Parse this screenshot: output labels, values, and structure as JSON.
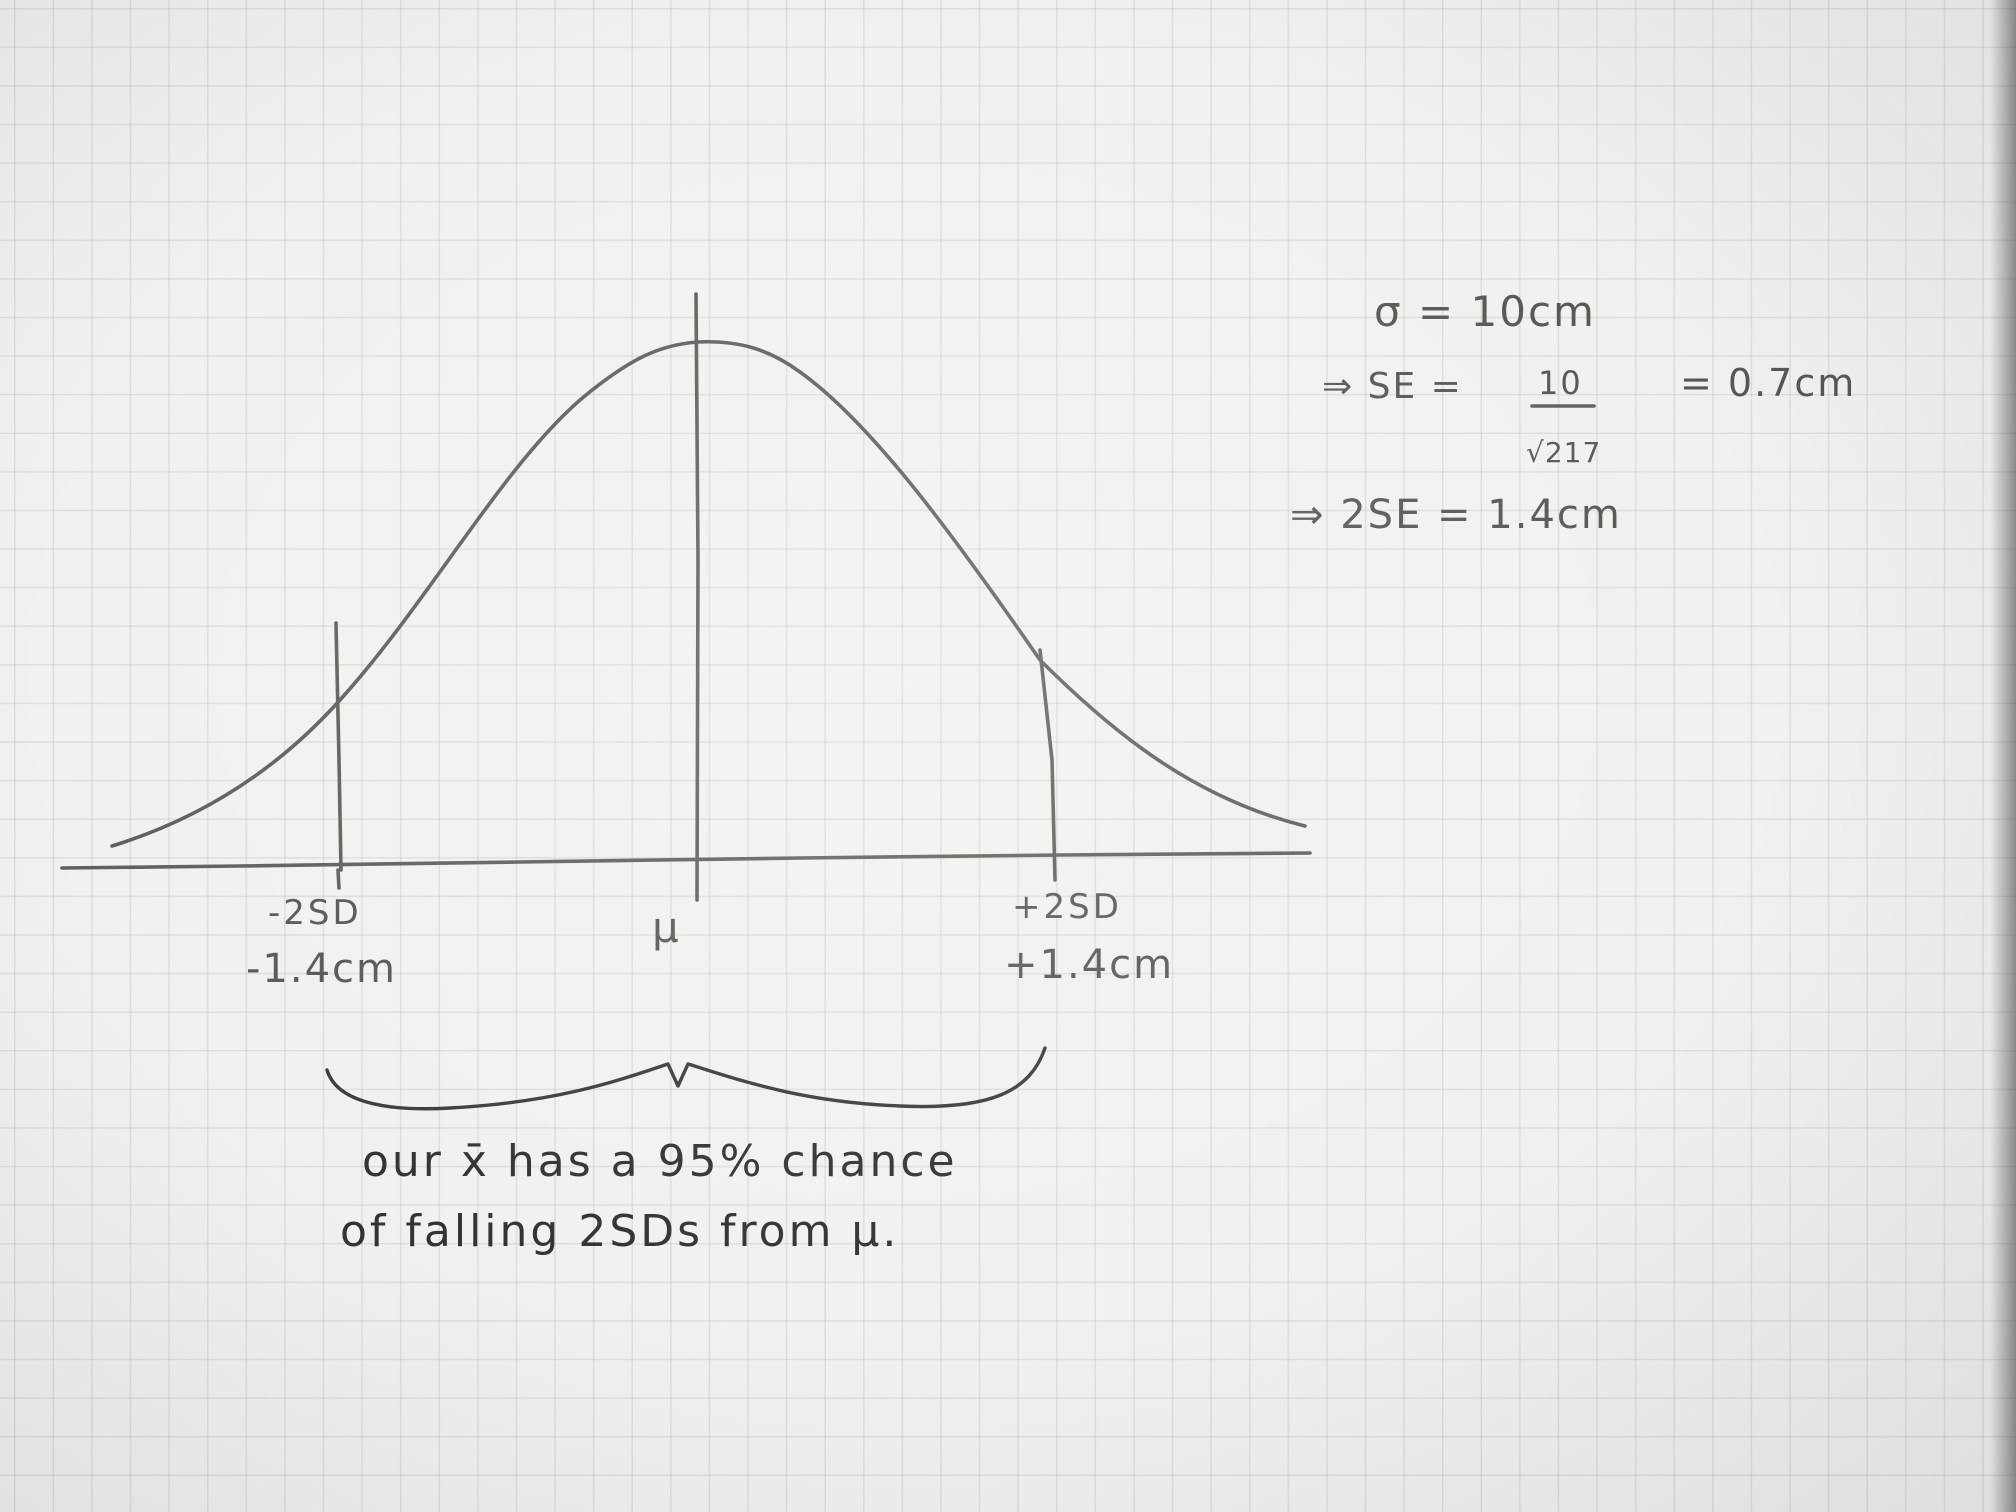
{
  "diagram": {
    "axis_labels": {
      "left_sd": "-2SD",
      "left_value": "-1.4cm",
      "center": "μ",
      "right_sd": "+2SD",
      "right_value": "+1.4cm"
    },
    "notes": {
      "sigma": "σ = 10cm",
      "se_prefix": "⇒ SE =",
      "se_numerator": "10",
      "se_denominator": "√217",
      "se_result": "= 0.7cm",
      "two_se": "⇒ 2SE = 1.4cm"
    },
    "caption": {
      "line1": "our x̄ has a 95% chance",
      "line2": "of falling 2SDs from μ."
    }
  }
}
